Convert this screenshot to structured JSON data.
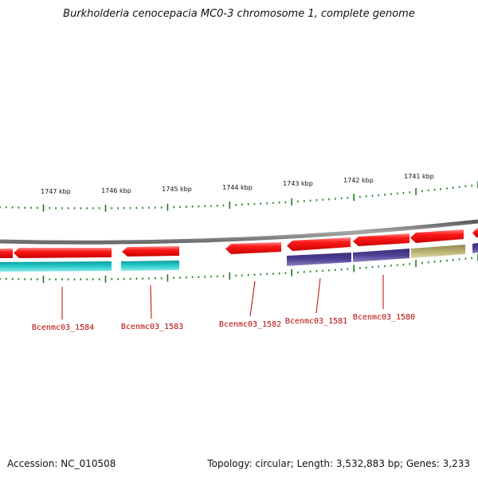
{
  "title": "Burkholderia cenocepacia MC0-3 chromosome 1, complete genome",
  "footer": {
    "accession": "Accession: NC_010508",
    "summary": "Topology: circular; Length: 3,532,883 bp; Genes: 3,233"
  },
  "ruler": {
    "ticks": [
      "1747 kbp",
      "1746 kbp",
      "1745 kbp",
      "1744 kbp",
      "1743 kbp",
      "1742 kbp",
      "1741 kbp"
    ]
  },
  "gene_labels": [
    "Bcenmc03_1584",
    "Bcenmc03_1583",
    "Bcenmc03_1582",
    "Bcenmc03_1581",
    "Bcenmc03_1580"
  ],
  "colors": {
    "backbone": "#808080",
    "tick": "#1e7a1e",
    "gene": "#ee0000",
    "cds_teal": "#22c4c4",
    "cds_purple": "#4b3a8c",
    "cds_olive": "#b7ae6e",
    "label": "#bb0000"
  }
}
